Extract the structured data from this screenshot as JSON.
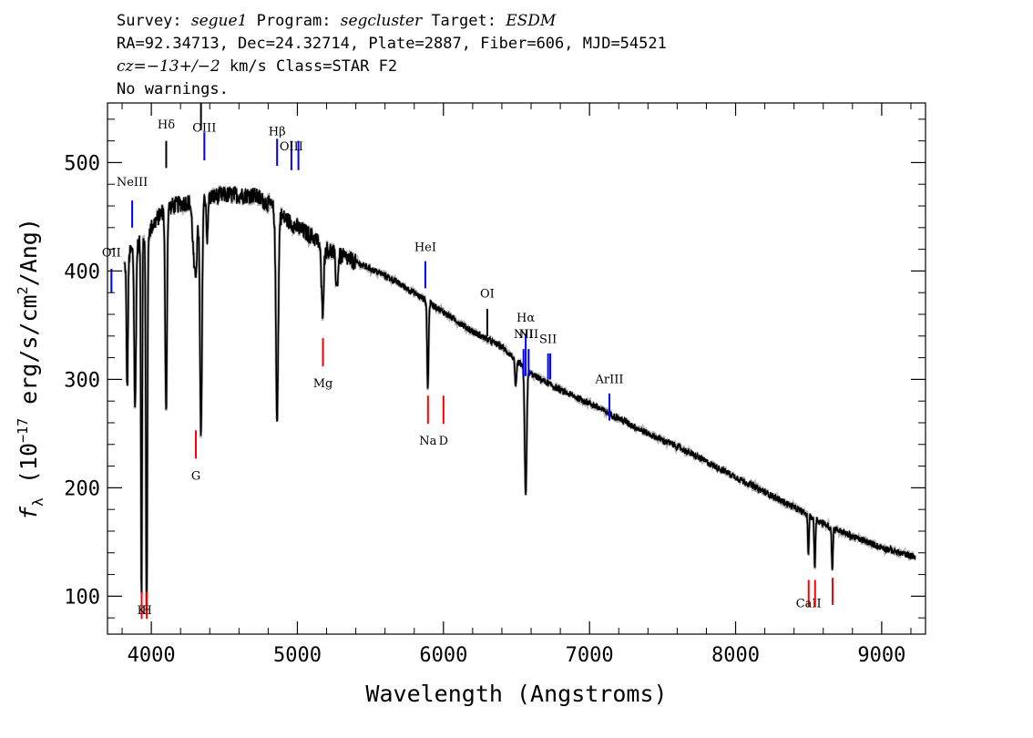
{
  "header": {
    "line1": {
      "survey_key": "Survey: ",
      "survey": "segue1",
      "program_key": " Program: ",
      "program": "segcluster",
      "target_key": " Target: ",
      "target": "ESDM"
    },
    "line2": "RA=92.34713, Dec=24.32714, Plate=2887, Fiber=606, MJD=54521",
    "line3": {
      "cz_label": "cz",
      "cz_value": "=−13+/−2",
      "rest": " km/s Class=STAR F2"
    },
    "line4": "No warnings."
  },
  "chart_data": {
    "type": "line",
    "title": "",
    "xlabel": "Wavelength (Angstroms)",
    "ylabel_parts": {
      "symbol": "f",
      "subscript": "λ",
      "prefix": " (10",
      "exponent": "−17",
      "mid": " erg/s/cm",
      "exponent2": "2",
      "suffix": "/Ang)"
    },
    "xlim": [
      3700,
      9300
    ],
    "ylim": [
      65,
      555
    ],
    "x_ticks": [
      4000,
      5000,
      6000,
      7000,
      8000,
      9000
    ],
    "x_tick_labels": [
      "4000",
      "5000",
      "6000",
      "7000",
      "8000",
      "9000"
    ],
    "y_ticks": [
      100,
      200,
      300,
      400,
      500
    ],
    "y_tick_labels": [
      "100",
      "200",
      "300",
      "400",
      "500"
    ],
    "series": [
      {
        "color": "#000000",
        "continuum": [
          [
            3800,
            400
          ],
          [
            3860,
            418
          ],
          [
            3940,
            428
          ],
          [
            4000,
            440
          ],
          [
            4060,
            452
          ],
          [
            4100,
            458
          ],
          [
            4200,
            462
          ],
          [
            4300,
            465
          ],
          [
            4400,
            468
          ],
          [
            4500,
            470
          ],
          [
            4600,
            470
          ],
          [
            4700,
            470
          ],
          [
            4800,
            462
          ],
          [
            4900,
            450
          ],
          [
            5000,
            440
          ],
          [
            5100,
            432
          ],
          [
            5200,
            420
          ],
          [
            5400,
            408
          ],
          [
            5600,
            396
          ],
          [
            5800,
            380
          ],
          [
            6000,
            362
          ],
          [
            6200,
            344
          ],
          [
            6400,
            330
          ],
          [
            6600,
            305
          ],
          [
            6800,
            290
          ],
          [
            7000,
            278
          ],
          [
            7200,
            264
          ],
          [
            7400,
            250
          ],
          [
            7600,
            238
          ],
          [
            7800,
            224
          ],
          [
            8000,
            210
          ],
          [
            8200,
            196
          ],
          [
            8400,
            182
          ],
          [
            8600,
            167
          ],
          [
            8800,
            155
          ],
          [
            9000,
            145
          ],
          [
            9200,
            137
          ]
        ],
        "absorption": [
          [
            3835,
            120,
            5
          ],
          [
            3889,
            150,
            6
          ],
          [
            3933,
            330,
            4
          ],
          [
            3968,
            355,
            5
          ],
          [
            4101,
            190,
            6
          ],
          [
            4300,
            70,
            14
          ],
          [
            4340,
            220,
            7
          ],
          [
            4383,
            40,
            5
          ],
          [
            4861,
            190,
            8
          ],
          [
            5172,
            60,
            8
          ],
          [
            5270,
            30,
            8
          ],
          [
            5893,
            80,
            5
          ],
          [
            6495,
            25,
            6
          ],
          [
            6563,
            115,
            7
          ],
          [
            8498,
            35,
            4
          ],
          [
            8542,
            45,
            4
          ],
          [
            8662,
            40,
            4
          ]
        ]
      }
    ],
    "line_markers": [
      {
        "label": "OII",
        "wavelength": 3727,
        "color": "#0000ff",
        "side": "top",
        "y_label": 410,
        "y_top": 402,
        "y_bottom": 380
      },
      {
        "label": "NeIII",
        "wavelength": 3869,
        "color": "#0000ff",
        "side": "top",
        "y_label": 475,
        "y_top": 465,
        "y_bottom": 440
      },
      {
        "label": "Hδ",
        "wavelength": 4102,
        "color": "#000000",
        "side": "top",
        "y_label": 528,
        "y_top": 520,
        "y_bottom": 495
      },
      {
        "label": "",
        "wavelength": 4340,
        "color": "#000000",
        "side": "top",
        "y_label": 560,
        "y_top": 555,
        "y_bottom": 530
      },
      {
        "label": "OIII",
        "wavelength": 4363,
        "color": "#0000ff",
        "side": "top",
        "y_label": 525,
        "y_top": 528,
        "y_bottom": 502
      },
      {
        "label": "Hβ",
        "wavelength": 4861,
        "color": "#0000ff",
        "side": "top",
        "y_label": 522,
        "y_top": 522,
        "y_bottom": 497
      },
      {
        "label": "OIII",
        "wavelength": 4959,
        "color": "#0000ff",
        "side": "top",
        "y_label": 508,
        "y_top": 520,
        "y_bottom": 493
      },
      {
        "label": "",
        "wavelength": 5007,
        "color": "#0000ff",
        "side": "top",
        "y_label": 508,
        "y_top": 520,
        "y_bottom": 493
      },
      {
        "label": "HeI",
        "wavelength": 5876,
        "color": "#0000ff",
        "side": "top",
        "y_label": 415,
        "y_top": 409,
        "y_bottom": 384
      },
      {
        "label": "OI",
        "wavelength": 6300,
        "color": "#000000",
        "side": "top",
        "y_label": 372,
        "y_top": 365,
        "y_bottom": 340
      },
      {
        "label": "NII",
        "wavelength": 6548,
        "color": "#0000ff",
        "side": "top",
        "y_label": 335,
        "y_top": 328,
        "y_bottom": 303
      },
      {
        "label": "Hα",
        "wavelength": 6563,
        "color": "#0000ff",
        "side": "top",
        "y_label": 350,
        "y_top": 342,
        "y_bottom": 303
      },
      {
        "label": "NII",
        "wavelength": 6583,
        "color": "#0000ff",
        "side": "top",
        "y_label": 335,
        "y_top": 328,
        "y_bottom": 303
      },
      {
        "label": "SII",
        "wavelength": 6716,
        "color": "#0000ff",
        "side": "top",
        "y_label": 330,
        "y_top": 324,
        "y_bottom": 300
      },
      {
        "label": "",
        "wavelength": 6731,
        "color": "#0000ff",
        "side": "top",
        "y_label": 330,
        "y_top": 324,
        "y_bottom": 300
      },
      {
        "label": "ArIII",
        "wavelength": 7136,
        "color": "#0000ff",
        "side": "top",
        "y_label": 293,
        "y_top": 287,
        "y_bottom": 262
      },
      {
        "label": "K",
        "wavelength": 3934,
        "color": "#ff0000",
        "side": "bottom",
        "y_label": 87,
        "y_top": 104,
        "y_bottom": 79
      },
      {
        "label": "H",
        "wavelength": 3969,
        "color": "#ff0000",
        "side": "bottom",
        "y_label": 87,
        "y_top": 104,
        "y_bottom": 79
      },
      {
        "label": "G",
        "wavelength": 4305,
        "color": "#ff0000",
        "side": "bottom",
        "y_label": 211,
        "y_top": 253,
        "y_bottom": 227
      },
      {
        "label": "Mg",
        "wavelength": 5175,
        "color": "#ff0000",
        "side": "bottom",
        "y_label": 296,
        "y_top": 338,
        "y_bottom": 312
      },
      {
        "label": "Na",
        "wavelength": 5894,
        "color": "#ff0000",
        "side": "bottom",
        "y_label": 243,
        "y_top": 285,
        "y_bottom": 259
      },
      {
        "label": "D",
        "wavelength": 6000,
        "color": "#ff0000",
        "side": "bottom",
        "y_label": 243,
        "y_top": 285,
        "y_bottom": 259
      },
      {
        "label": "CaII",
        "wavelength": 8500,
        "color": "#ff0000",
        "side": "bottom",
        "y_label": 93,
        "y_top": 115,
        "y_bottom": 90
      },
      {
        "label": "",
        "wavelength": 8544,
        "color": "#ff0000",
        "side": "bottom",
        "y_label": 93,
        "y_top": 115,
        "y_bottom": 90
      },
      {
        "label": "",
        "wavelength": 8664,
        "color": "#ff0000",
        "side": "bottom",
        "y_label": 93,
        "y_top": 117,
        "y_bottom": 92
      }
    ]
  }
}
